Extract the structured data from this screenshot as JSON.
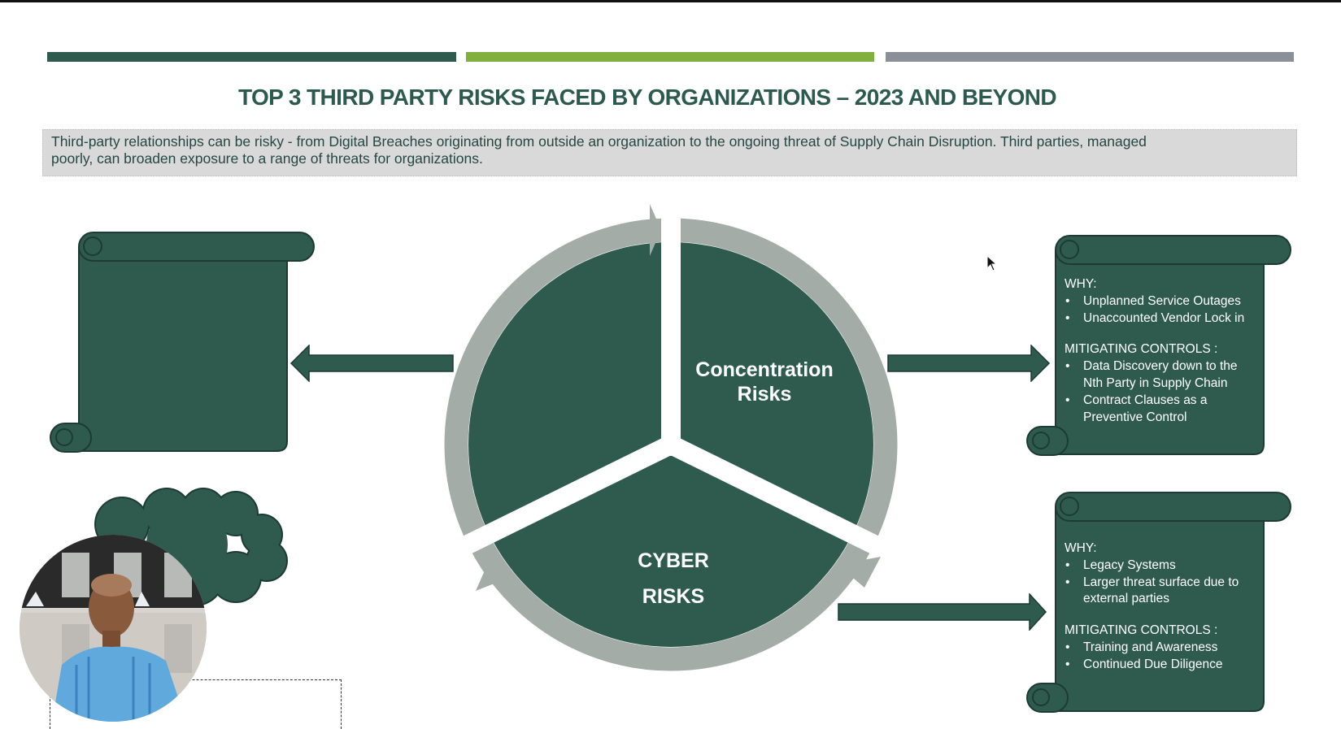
{
  "colors": {
    "primary_green": "#2e5b4e",
    "accent_lime": "#82b03f",
    "slate_gray": "#8b9098",
    "ring_gray": "#a4aca8",
    "title": "#2d5a4e"
  },
  "slide": {
    "title": "TOP 3 THIRD PARTY RISKS FACED BY ORGANIZATIONS – 2023 AND BEYOND",
    "description_line1": "Third-party relationships can be risky - from Digital Breaches originating from outside an organization to the ongoing threat of Supply Chain Disruption. Third parties, managed",
    "description_line2": "poorly, can broaden exposure to a range of threats for organizations."
  },
  "cycle": {
    "segments": [
      {
        "label_line1": "",
        "label_line2": ""
      },
      {
        "label_line1": "Concentration",
        "label_line2": "Risks"
      },
      {
        "label_line1": "CYBER",
        "label_line2": "RISKS"
      }
    ]
  },
  "scrolls": {
    "concentration": {
      "why_heading": "WHY:",
      "why_items": [
        "Unplanned Service Outages",
        "Unaccounted Vendor Lock in"
      ],
      "controls_heading": "MITIGATING CONTROLS :",
      "controls_items": [
        "Data Discovery down to the Nth Party in Supply Chain",
        "Contract Clauses as a Preventive Control"
      ]
    },
    "cyber": {
      "why_heading": "WHY:",
      "why_items": [
        "Legacy Systems",
        "Larger threat surface due to external parties"
      ],
      "controls_heading": "MITIGATING CONTROLS :",
      "controls_items": [
        "Training and Awareness",
        "Continued Due Diligence"
      ]
    }
  },
  "icons": {
    "cursor": "mouse-pointer-icon",
    "webcam": "presenter-webcam"
  }
}
